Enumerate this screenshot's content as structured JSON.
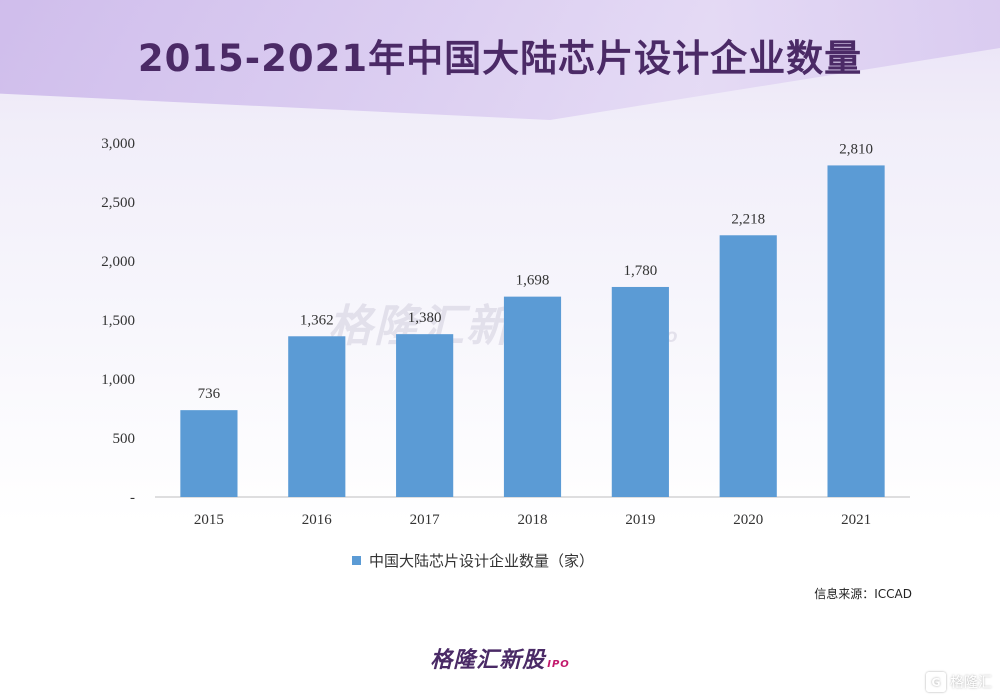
{
  "title": "2015-2021年中国大陆芯片设计企业数量",
  "legend_label": "中国大陆芯片设计企业数量（家）",
  "source": "信息来源：ICCAD",
  "watermark": "格隆汇新股",
  "watermark_sub": "IPO",
  "brand": "格隆汇新股",
  "brand_sub": "IPO",
  "corner_logo": "格隆汇",
  "colors": {
    "bar": "#5b9bd5",
    "title": "#4b2a66"
  },
  "chart_data": {
    "type": "bar",
    "title": "2015-2021年中国大陆芯片设计企业数量",
    "categories": [
      "2015",
      "2016",
      "2017",
      "2018",
      "2019",
      "2020",
      "2021"
    ],
    "series": [
      {
        "name": "中国大陆芯片设计企业数量（家）",
        "values": [
          736,
          1362,
          1380,
          1698,
          1780,
          2218,
          2810
        ]
      }
    ],
    "data_labels": [
      "736",
      "1,362",
      "1,380",
      "1,698",
      "1,780",
      "2,218",
      "2,810"
    ],
    "yticks": [
      "-",
      "500",
      "1,000",
      "1,500",
      "2,000",
      "2,500",
      "3,000"
    ],
    "ytick_values": [
      0,
      500,
      1000,
      1500,
      2000,
      2500,
      3000
    ],
    "ylim": [
      0,
      3000
    ],
    "xlabel": "",
    "ylabel": "",
    "grid": false,
    "legend_position": "bottom"
  }
}
